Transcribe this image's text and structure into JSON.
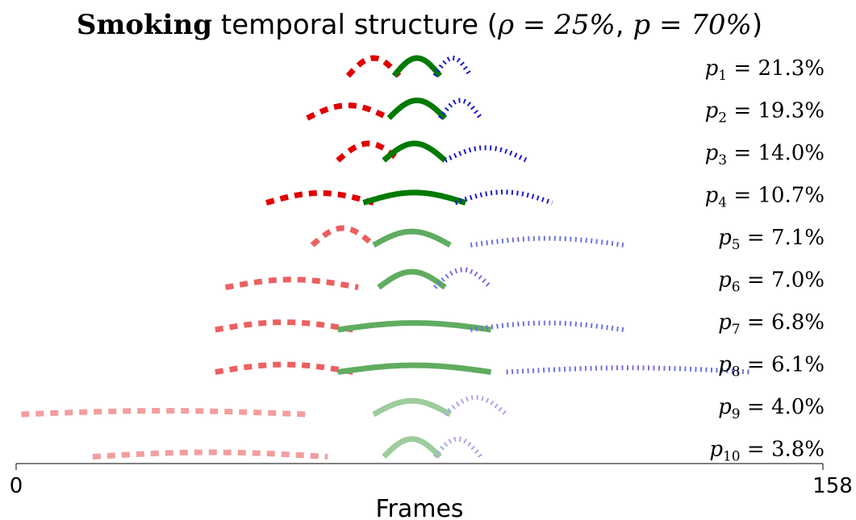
{
  "title": {
    "bold": "Smoking",
    "rest": " temporal structure (",
    "rho": "ρ = 25%",
    "sep": ", ",
    "p": "p = 70%",
    "close": ")"
  },
  "chart_data": {
    "type": "line",
    "xlabel": "Frames",
    "xlim": [
      0,
      158
    ],
    "xticks": [
      "0",
      "158"
    ],
    "colors": {
      "before": "#e00000",
      "during": "#007a00",
      "after": "#1a1acc"
    },
    "rows": [
      {
        "label": "p1 = 21.3%",
        "sub": "1",
        "value": "21.3%",
        "alpha": 1.0,
        "before": [
          65,
          75
        ],
        "during": [
          74,
          83
        ],
        "after": [
          82,
          89
        ]
      },
      {
        "label": "p2 = 19.3%",
        "sub": "2",
        "value": "19.3%",
        "alpha": 1.0,
        "before": [
          57,
          73
        ],
        "during": [
          73,
          84
        ],
        "after": [
          83,
          91
        ]
      },
      {
        "label": "p3 = 14.0%",
        "sub": "3",
        "value": "14.0%",
        "alpha": 1.0,
        "before": [
          63,
          75
        ],
        "during": [
          72,
          84
        ],
        "after": [
          84,
          100
        ]
      },
      {
        "label": "p4 = 10.7%",
        "sub": "4",
        "value": "10.7%",
        "alpha": 1.0,
        "before": [
          49,
          70
        ],
        "during": [
          68,
          88
        ],
        "after": [
          86,
          105
        ]
      },
      {
        "label": "p5 = 7.1%",
        "sub": "5",
        "value": "7.1%",
        "alpha": 0.62,
        "before": [
          58,
          70
        ],
        "during": [
          70,
          85
        ],
        "after": [
          89,
          119
        ]
      },
      {
        "label": "p6 = 7.0%",
        "sub": "6",
        "value": "7.0%",
        "alpha": 0.62,
        "before": [
          41,
          67
        ],
        "during": [
          71,
          84
        ],
        "after": [
          82,
          93
        ]
      },
      {
        "label": "p7 = 6.8%",
        "sub": "7",
        "value": "6.8%",
        "alpha": 0.62,
        "before": [
          39,
          66
        ],
        "during": [
          63,
          93
        ],
        "after": [
          89,
          119
        ]
      },
      {
        "label": "p8 = 6.1%",
        "sub": "8",
        "value": "6.1%",
        "alpha": 0.62,
        "before": [
          39,
          66
        ],
        "during": [
          63,
          93
        ],
        "after": [
          96,
          144
        ]
      },
      {
        "label": "p9 = 4.0%",
        "sub": "9",
        "value": "4.0%",
        "alpha": 0.38,
        "before": [
          1,
          57
        ],
        "during": [
          70,
          85
        ],
        "after": [
          84,
          96
        ]
      },
      {
        "label": "p10 = 3.8%",
        "sub": "10",
        "value": "3.8%",
        "alpha": 0.38,
        "before": [
          15,
          61
        ],
        "during": [
          72,
          83
        ],
        "after": [
          82,
          91
        ]
      }
    ]
  }
}
